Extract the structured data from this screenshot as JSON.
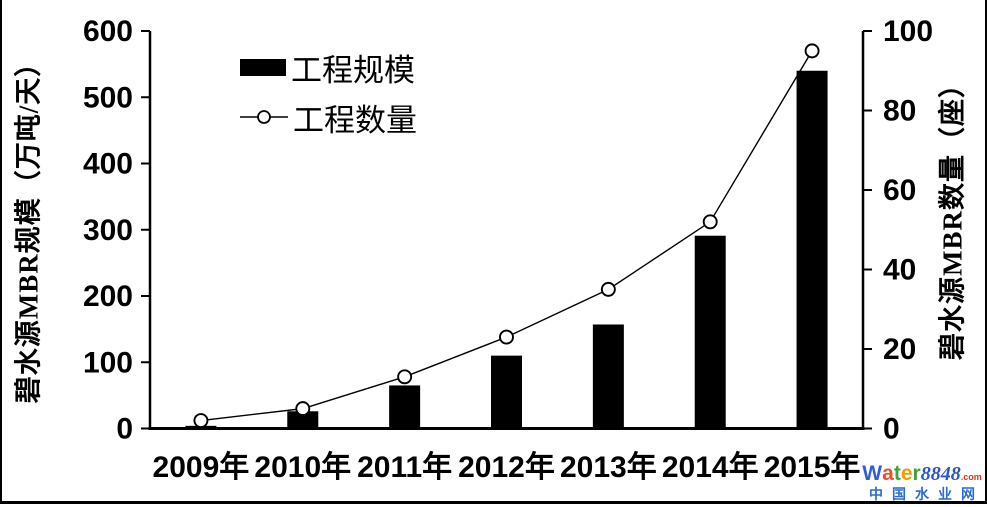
{
  "chart_data": {
    "type": "combo-bar-line",
    "categories": [
      "2009年",
      "2010年",
      "2011年",
      "2012年",
      "2013年",
      "2014年",
      "2015年"
    ],
    "series": [
      {
        "name": "工程规模",
        "type": "bar",
        "axis": "left",
        "color": "#000000",
        "values": [
          4,
          26,
          65,
          110,
          157,
          291,
          540
        ]
      },
      {
        "name": "工程数量",
        "type": "line",
        "axis": "right",
        "color": "#000000",
        "marker": "open-circle",
        "marker_fill": "#ffffff",
        "values": [
          2,
          5,
          13,
          23,
          35,
          52,
          95
        ]
      }
    ],
    "left_axis": {
      "title": "碧水源MBR规模（万吨/天）",
      "min": 0,
      "max": 600,
      "step": 100
    },
    "right_axis": {
      "title": "碧水源MBR数量（座）",
      "min": 0,
      "max": 100,
      "step": 20
    },
    "grid": false,
    "legend_position": "inside-top-left",
    "background": "#ffffff",
    "axis_color": "#000000"
  },
  "watermark": {
    "brand_letters": [
      {
        "ch": "W",
        "color": "#2b5ed8"
      },
      {
        "ch": "a",
        "color": "#e8502a"
      },
      {
        "ch": "t",
        "color": "#3fa33b"
      },
      {
        "ch": "e",
        "color": "#f59b00"
      },
      {
        "ch": "r",
        "color": "#3fa33b"
      }
    ],
    "brand_number": "8848",
    "brand_number_color": "#2a57c8",
    "brand_suffix": ".com",
    "brand_suffix_color": "#e03018",
    "tagline": "中国水业网",
    "tagline_color": "#2a6ad4"
  }
}
